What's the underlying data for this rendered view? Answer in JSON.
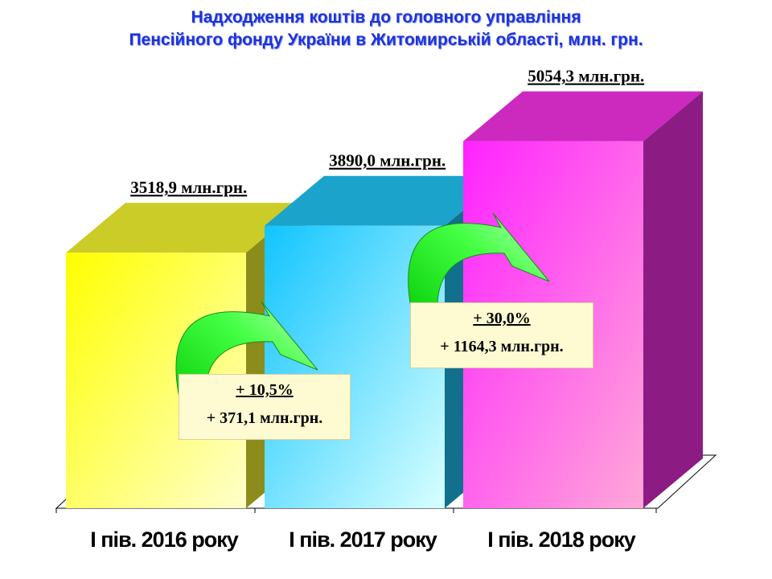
{
  "chart_data": {
    "type": "bar",
    "title": "Надходження коштів до головного управління",
    "subtitle": "Пенсійного фонду України в Житомирській області, млн. грн.",
    "categories": [
      "І пів. 2016 року",
      "І пів. 2017 року",
      "І пів. 2018 року"
    ],
    "values": [
      3518.9,
      3890.0,
      5054.3
    ],
    "value_labels": [
      "3518,9 млн.грн.",
      "3890,0 млн.грн.",
      "5054,3 млн.грн."
    ],
    "colors": [
      "#ffff33",
      "#22ccff",
      "#ff33ee"
    ],
    "annotations": [
      {
        "from": 0,
        "to": 1,
        "percent": "+ 10,5%",
        "absolute": "+ 371,1 млн.грн."
      },
      {
        "from": 1,
        "to": 2,
        "percent": "+ 30,0%",
        "absolute": "+ 1164,3 млн.грн."
      }
    ],
    "grid": false,
    "legend": "none"
  }
}
